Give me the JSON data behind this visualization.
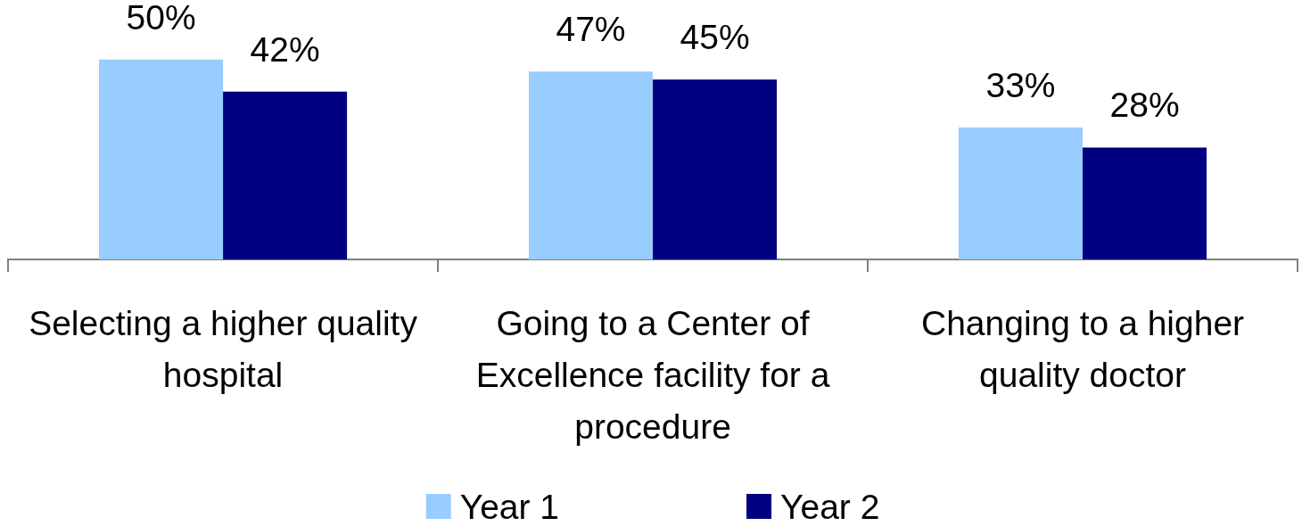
{
  "chart_data": {
    "type": "bar",
    "categories": [
      "Selecting a higher quality hospital",
      "Going to a Center of Excellence facility for a procedure",
      "Changing to a higher quality doctor"
    ],
    "series": [
      {
        "name": "Year 1",
        "color": "#99ccff",
        "values": [
          50,
          47,
          33
        ],
        "value_labels": [
          "50%",
          "47%",
          "33%"
        ]
      },
      {
        "name": "Year 2",
        "color": "#000080",
        "values": [
          42,
          45,
          28
        ],
        "value_labels": [
          "42%",
          "45%",
          "28%"
        ]
      }
    ],
    "legend": "bottom"
  }
}
